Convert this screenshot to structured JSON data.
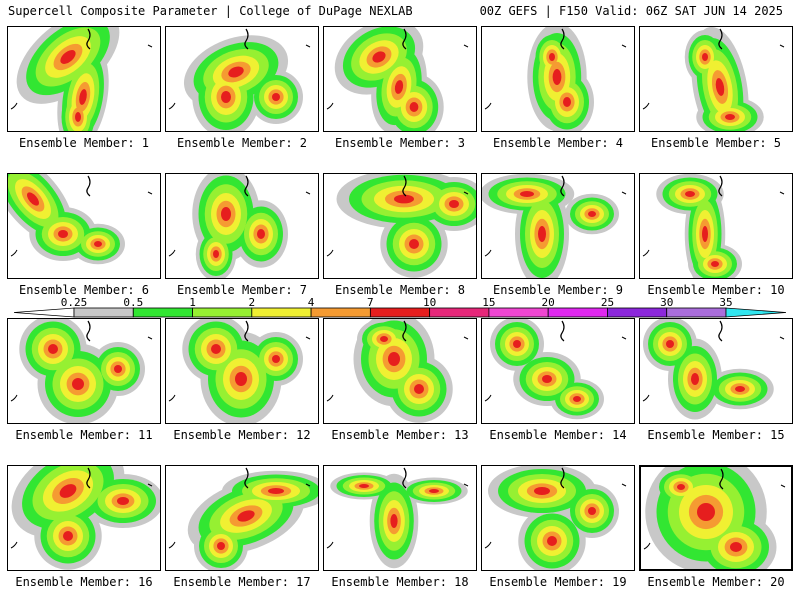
{
  "header": {
    "left": "Supercell Composite Parameter | College of DuPage NEXLAB",
    "right": "00Z GEFS | F150 Valid: 06Z SAT JUN 14 2025"
  },
  "members": [
    {
      "label": "Ensemble Member: 1"
    },
    {
      "label": "Ensemble Member: 2"
    },
    {
      "label": "Ensemble Member: 3"
    },
    {
      "label": "Ensemble Member: 4"
    },
    {
      "label": "Ensemble Member: 5"
    },
    {
      "label": "Ensemble Member: 6"
    },
    {
      "label": "Ensemble Member: 7"
    },
    {
      "label": "Ensemble Member: 8"
    },
    {
      "label": "Ensemble Member: 9"
    },
    {
      "label": "Ensemble Member: 10"
    },
    {
      "label": "Ensemble Member: 11"
    },
    {
      "label": "Ensemble Member: 12"
    },
    {
      "label": "Ensemble Member: 13"
    },
    {
      "label": "Ensemble Member: 14"
    },
    {
      "label": "Ensemble Member: 15"
    },
    {
      "label": "Ensemble Member: 16"
    },
    {
      "label": "Ensemble Member: 17"
    },
    {
      "label": "Ensemble Member: 18"
    },
    {
      "label": "Ensemble Member: 19"
    },
    {
      "label": "Ensemble Member: 20"
    }
  ],
  "selected_member": 20,
  "colorbar": {
    "ticks": [
      "0.25",
      "0.5",
      "1",
      "2",
      "4",
      "7",
      "10",
      "15",
      "20",
      "25",
      "30",
      "35"
    ],
    "colors": [
      "#c8c8c8",
      "#32e632",
      "#96f032",
      "#f0f032",
      "#f59b32",
      "#e61e1e",
      "#e6287a",
      "#f046d2",
      "#e028f0",
      "#8c28dc",
      "#aa6edc",
      "#32e6f0"
    ]
  }
}
